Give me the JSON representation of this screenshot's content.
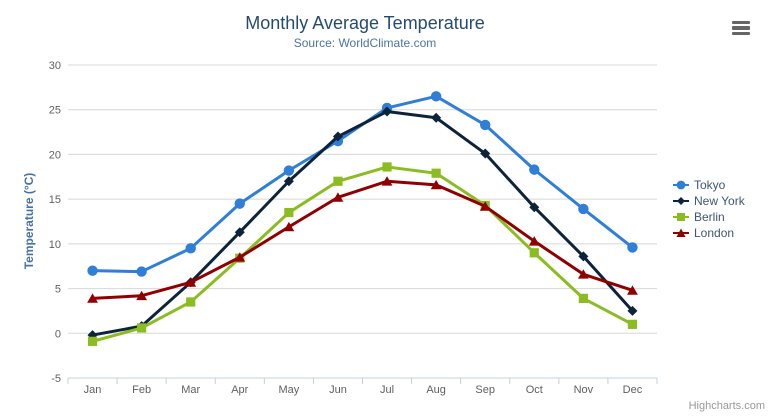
{
  "chart": {
    "title": "Monthly Average Temperature",
    "subtitle": "Source: WorldClimate.com",
    "y_axis_title": "Temperature (°C)",
    "credits": "Highcharts.com"
  },
  "colors": {
    "title": "#274b6d",
    "subtitle": "#4d759e",
    "axis_label": "#606060",
    "y_axis_title": "#4572a7",
    "grid_line": "#d8d8d8",
    "axis_line": "#c0d0e0",
    "legend_text": "#3e576f",
    "credits": "#999999",
    "menu_icon": "#666666"
  },
  "chart_data": {
    "type": "line",
    "title": "Monthly Average Temperature",
    "subtitle": "Source: WorldClimate.com",
    "xlabel": "",
    "ylabel": "Temperature (°C)",
    "ylim": [
      -5,
      30
    ],
    "ytick_step": 5,
    "grid": true,
    "legend_position": "right",
    "categories": [
      "Jan",
      "Feb",
      "Mar",
      "Apr",
      "May",
      "Jun",
      "Jul",
      "Aug",
      "Sep",
      "Oct",
      "Nov",
      "Dec"
    ],
    "series": [
      {
        "name": "Tokyo",
        "color": "#2f7ed8",
        "marker": "circle",
        "values": [
          7.0,
          6.9,
          9.5,
          14.5,
          18.2,
          21.5,
          25.2,
          26.5,
          23.3,
          18.3,
          13.9,
          9.6
        ]
      },
      {
        "name": "New York",
        "color": "#0d233a",
        "marker": "diamond",
        "values": [
          -0.2,
          0.8,
          5.7,
          11.3,
          17.0,
          22.0,
          24.8,
          24.1,
          20.1,
          14.1,
          8.6,
          2.5
        ]
      },
      {
        "name": "Berlin",
        "color": "#8bbc21",
        "marker": "square",
        "values": [
          -0.9,
          0.6,
          3.5,
          8.4,
          13.5,
          17.0,
          18.6,
          17.9,
          14.3,
          9.0,
          3.9,
          1.0
        ]
      },
      {
        "name": "London",
        "color": "#910000",
        "marker": "triangle",
        "values": [
          3.9,
          4.2,
          5.7,
          8.5,
          11.9,
          15.2,
          17.0,
          16.6,
          14.2,
          10.3,
          6.6,
          4.8
        ]
      }
    ]
  }
}
